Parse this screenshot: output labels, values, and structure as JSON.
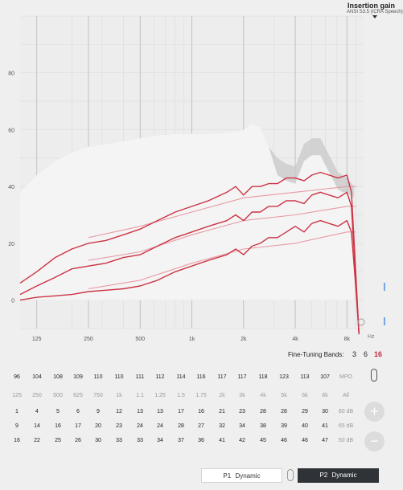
{
  "header": {
    "title": "Insertion gain",
    "subtitle": "ANSI S3.5 (ICRA Speech)"
  },
  "chart_data": {
    "type": "line",
    "title": "",
    "xlabel": "Hz",
    "ylabel": "",
    "x_scale": "log",
    "xlim": [
      100,
      10000
    ],
    "ylim": [
      -10,
      100
    ],
    "y_ticks": [
      0,
      20,
      40,
      60,
      80
    ],
    "x_tick_labels": [
      {
        "label": "125",
        "value": 125
      },
      {
        "label": "250",
        "value": 250
      },
      {
        "label": "500",
        "value": 500
      },
      {
        "label": "1k",
        "value": 1000
      },
      {
        "label": "2k",
        "value": 2000
      },
      {
        "label": "4k",
        "value": 4000
      },
      {
        "label": "8k",
        "value": 8000
      }
    ],
    "grid": true,
    "envelope": {
      "name": "",
      "x": [
        100,
        125,
        160,
        200,
        250,
        315,
        400,
        500,
        630,
        800,
        1000,
        1250,
        1600,
        2000,
        2200,
        2500,
        2800,
        3150,
        3550,
        4000,
        4500,
        5000,
        5600,
        6300,
        7100,
        8000,
        8800
      ],
      "y": [
        38,
        44,
        49,
        52,
        54,
        55,
        56,
        57,
        58,
        58.5,
        58.5,
        58.5,
        59,
        60,
        62,
        61,
        54,
        50,
        48,
        47,
        55,
        57,
        57,
        51,
        45,
        43,
        40
      ]
    },
    "series": [
      {
        "name": "",
        "role": "target",
        "x": [
          250,
          500,
          1000,
          2000,
          4000,
          8000,
          9000
        ],
        "y": [
          22,
          26,
          31,
          36,
          38,
          40,
          40
        ]
      },
      {
        "name": "",
        "role": "target",
        "x": [
          250,
          500,
          1000,
          2000,
          4000,
          8000,
          9000
        ],
        "y": [
          14,
          17,
          23,
          28,
          30,
          33,
          33
        ]
      },
      {
        "name": "",
        "role": "target",
        "x": [
          250,
          500,
          1000,
          2000,
          4000,
          8000,
          9000
        ],
        "y": [
          4,
          7,
          13,
          18,
          20,
          24,
          24
        ]
      },
      {
        "name": "",
        "role": "fitted",
        "x": [
          100,
          125,
          160,
          200,
          250,
          315,
          400,
          500,
          630,
          800,
          1000,
          1250,
          1600,
          1800,
          2000,
          2240,
          2500,
          2800,
          3150,
          3550,
          4000,
          4500,
          5000,
          5600,
          6300,
          7100,
          8000,
          8500,
          9000,
          9400
        ],
        "y": [
          6,
          10,
          15,
          18,
          20,
          21,
          23,
          25,
          28,
          31,
          33,
          35,
          38,
          40,
          37,
          40,
          40,
          41,
          41,
          43,
          43,
          42,
          44,
          45,
          44,
          43,
          44,
          38,
          10,
          -12
        ]
      },
      {
        "name": "",
        "role": "fitted",
        "x": [
          100,
          125,
          160,
          200,
          250,
          315,
          400,
          500,
          630,
          800,
          1000,
          1250,
          1600,
          1800,
          2000,
          2240,
          2500,
          2800,
          3150,
          3550,
          4000,
          4500,
          5000,
          5600,
          6300,
          7100,
          8000,
          8500,
          9000,
          9400
        ],
        "y": [
          2,
          5,
          8,
          11,
          12,
          13,
          15,
          16,
          19,
          22,
          24,
          26,
          28,
          30,
          28,
          31,
          31,
          33,
          33,
          35,
          35,
          34,
          37,
          38,
          37,
          36,
          38,
          33,
          8,
          -12
        ]
      },
      {
        "name": "",
        "role": "fitted",
        "x": [
          100,
          125,
          160,
          200,
          250,
          315,
          400,
          500,
          630,
          800,
          1000,
          1250,
          1600,
          1800,
          2000,
          2240,
          2500,
          2800,
          3150,
          3550,
          4000,
          4500,
          5000,
          5600,
          6300,
          7100,
          8000,
          8500,
          9000,
          9400
        ],
        "y": [
          0,
          1,
          1.5,
          2,
          3,
          3.5,
          4,
          5,
          7,
          10,
          12,
          14,
          16,
          18,
          16,
          19,
          20,
          22,
          22,
          24,
          26,
          24,
          27,
          28,
          27,
          26,
          28,
          24,
          5,
          -12
        ]
      }
    ]
  },
  "fine_tuning": {
    "label": "Fine-Tuning Bands:",
    "options": [
      "3",
      "6",
      "16"
    ],
    "active": "16"
  },
  "band_table": {
    "rows": [
      {
        "id": "mpo",
        "values": [
          "96",
          "104",
          "108",
          "109",
          "110",
          "110",
          "111",
          "112",
          "114",
          "116",
          "117",
          "117",
          "118",
          "123",
          "113",
          "107"
        ],
        "label": "MPO",
        "grey": false
      },
      {
        "id": "freq",
        "values": [
          "125",
          "250",
          "500",
          "625",
          "750",
          "1k",
          "1.1",
          "1.25",
          "1.5",
          "1.75",
          "2k",
          "3k",
          "4k",
          "5k",
          "6k",
          "8k"
        ],
        "label": "All",
        "grey": true
      },
      {
        "id": "g80",
        "values": [
          "1",
          "4",
          "5",
          "6",
          "9",
          "12",
          "13",
          "13",
          "17",
          "16",
          "21",
          "23",
          "28",
          "28",
          "29",
          "30"
        ],
        "label": "80 dB",
        "grey": false
      },
      {
        "id": "g65",
        "values": [
          "9",
          "14",
          "16",
          "17",
          "20",
          "23",
          "24",
          "24",
          "28",
          "27",
          "32",
          "34",
          "38",
          "39",
          "40",
          "41"
        ],
        "label": "65 dB",
        "grey": false
      },
      {
        "id": "g50",
        "values": [
          "16",
          "22",
          "25",
          "26",
          "30",
          "33",
          "33",
          "34",
          "37",
          "36",
          "41",
          "42",
          "45",
          "46",
          "46",
          "47"
        ],
        "label": "50 dB",
        "grey": false
      }
    ]
  },
  "side_buttons": {
    "plus": "+",
    "minus": "−"
  },
  "programs": {
    "p1": {
      "tag": "P1",
      "label": "Dynamic"
    },
    "p2": {
      "tag": "P2",
      "label": "Dynamic"
    }
  },
  "colors": {
    "fitted": "#cc3344",
    "target": "#e89aa4",
    "envelope_dark": "#c8c8c8",
    "envelope_light": "#f4f4f4",
    "active": "#c8283c",
    "selected_program": "#2f3337"
  }
}
